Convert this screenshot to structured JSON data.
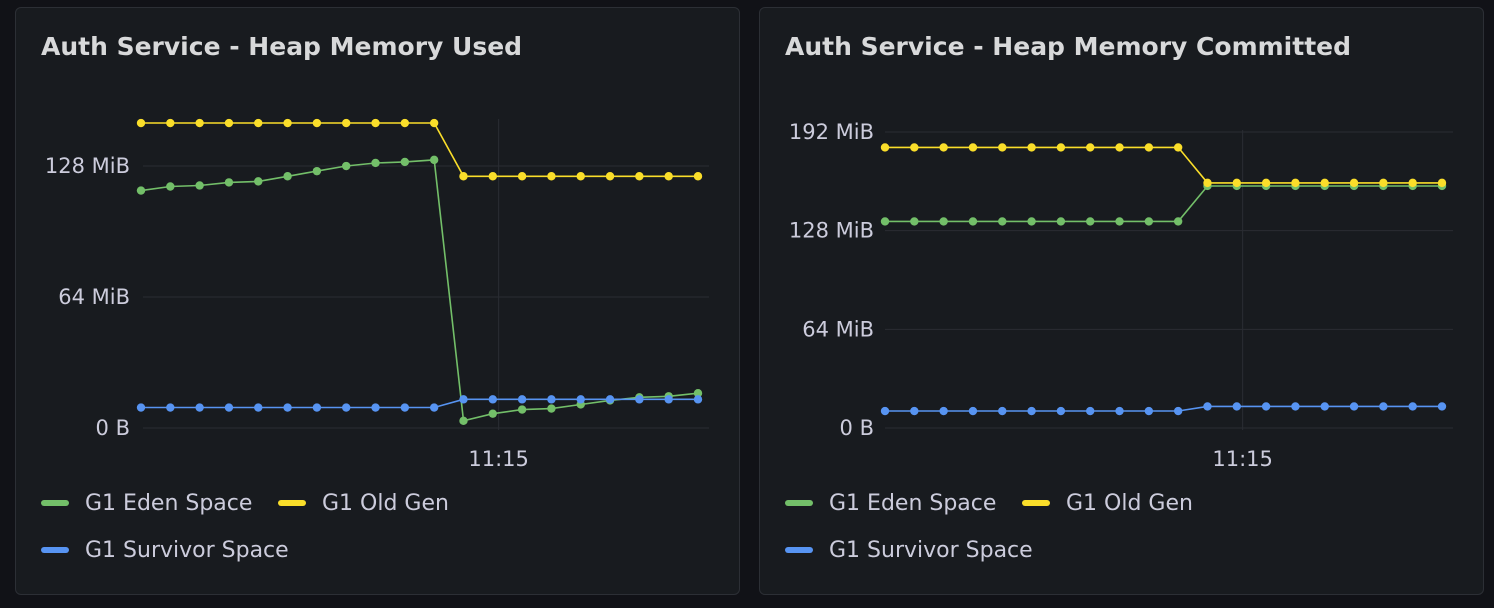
{
  "panels": [
    {
      "title": "Auth Service - Heap Memory Used",
      "legend": [
        {
          "label": "G1 Eden Space",
          "color": "#73bf69"
        },
        {
          "label": "G1 Old Gen",
          "color": "#fade2a"
        },
        {
          "label": "G1 Survivor Space",
          "color": "#5794f2"
        }
      ]
    },
    {
      "title": "Auth Service - Heap Memory Committed",
      "legend": [
        {
          "label": "G1 Eden Space",
          "color": "#73bf69"
        },
        {
          "label": "G1 Old Gen",
          "color": "#fade2a"
        },
        {
          "label": "G1 Survivor Space",
          "color": "#5794f2"
        }
      ]
    }
  ],
  "chart_data": [
    {
      "type": "line",
      "title": "Auth Service - Heap Memory Used",
      "y_unit": "MiB",
      "ylim": [
        0,
        150
      ],
      "yticks": [
        0,
        64,
        128
      ],
      "ytick_labels": [
        "0 B",
        "64 MiB",
        "128 MiB"
      ],
      "xtick_labels": [
        "11:15"
      ],
      "xtick_index": 12.2,
      "x_count": 20,
      "series": [
        {
          "name": "G1 Eden Space",
          "color": "#73bf69",
          "values": [
            116,
            118,
            118.5,
            120,
            120.5,
            123,
            125.5,
            128,
            129.5,
            130,
            131,
            3.5,
            7,
            9,
            9.5,
            11.5,
            13.5,
            15,
            15.5,
            17
          ]
        },
        {
          "name": "G1 Old Gen",
          "color": "#fade2a",
          "values": [
            149,
            149,
            149,
            149,
            149,
            149,
            149,
            149,
            149,
            149,
            149,
            123,
            123,
            123,
            123,
            123,
            123,
            123,
            123,
            123
          ]
        },
        {
          "name": "G1 Survivor Space",
          "color": "#5794f2",
          "values": [
            10,
            10,
            10,
            10,
            10,
            10,
            10,
            10,
            10,
            10,
            10,
            14,
            14,
            14,
            14,
            14,
            14,
            14,
            14,
            14
          ]
        }
      ]
    },
    {
      "type": "line",
      "title": "Auth Service - Heap Memory Committed",
      "y_unit": "MiB",
      "ylim": [
        0,
        192
      ],
      "yticks": [
        0,
        64,
        128,
        192
      ],
      "ytick_labels": [
        "0 B",
        "64 MiB",
        "128 MiB",
        "192 MiB"
      ],
      "xtick_labels": [
        "11:15"
      ],
      "xtick_index": 12.2,
      "x_count": 20,
      "series": [
        {
          "name": "G1 Eden Space",
          "color": "#73bf69",
          "values": [
            134,
            134,
            134,
            134,
            134,
            134,
            134,
            134,
            134,
            134,
            134,
            157,
            157,
            157,
            157,
            157,
            157,
            157,
            157,
            157
          ]
        },
        {
          "name": "G1 Old Gen",
          "color": "#fade2a",
          "values": [
            182,
            182,
            182,
            182,
            182,
            182,
            182,
            182,
            182,
            182,
            182,
            159,
            159,
            159,
            159,
            159,
            159,
            159,
            159,
            159
          ]
        },
        {
          "name": "G1 Survivor Space",
          "color": "#5794f2",
          "values": [
            11,
            11,
            11,
            11,
            11,
            11,
            11,
            11,
            11,
            11,
            11,
            14,
            14,
            14,
            14,
            14,
            14,
            14,
            14,
            14
          ]
        }
      ]
    }
  ]
}
